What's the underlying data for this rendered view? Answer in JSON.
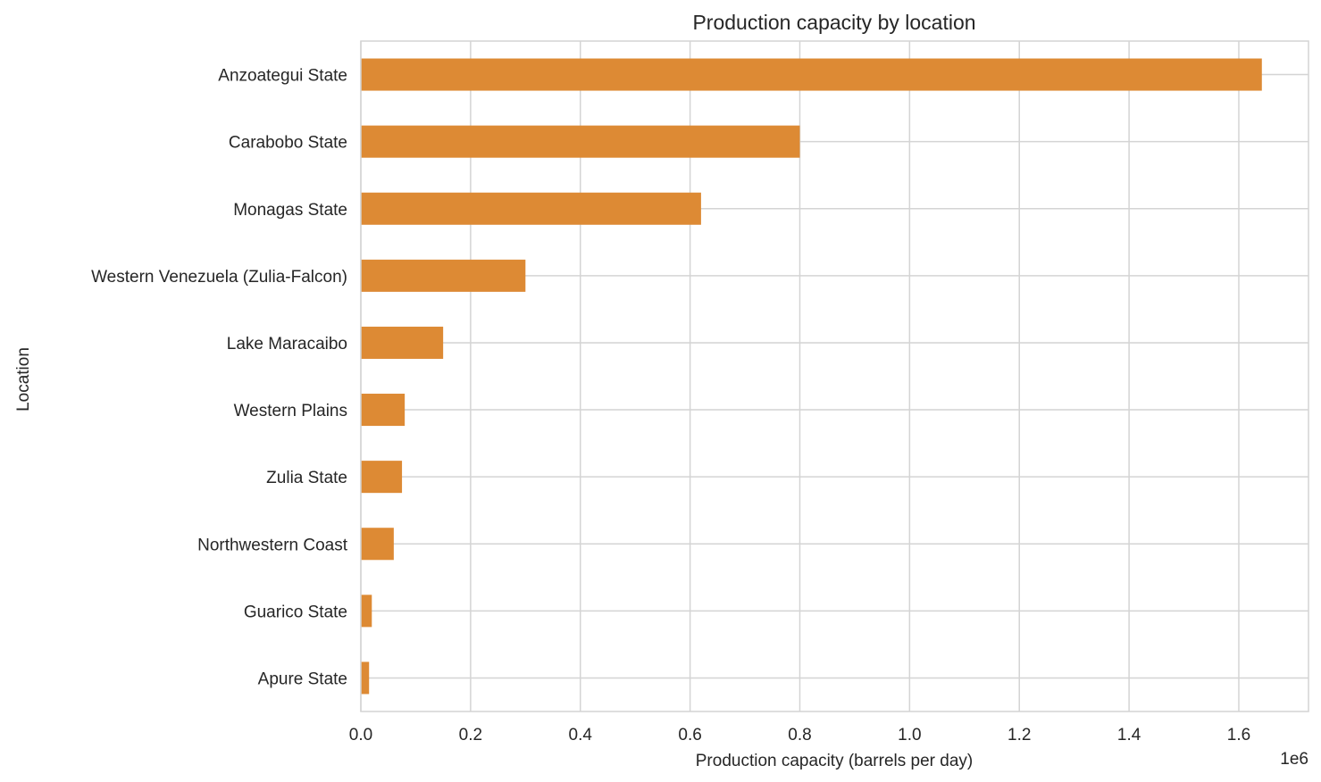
{
  "chart_data": {
    "type": "bar",
    "orientation": "horizontal",
    "title": "Production capacity by location",
    "xlabel": "Production capacity (barrels per day)",
    "ylabel": "Location",
    "x_offset_label": "1e6",
    "xlim": [
      0,
      1727000
    ],
    "x_ticks": [
      0,
      200000,
      400000,
      600000,
      800000,
      1000000,
      1200000,
      1400000,
      1600000
    ],
    "x_tick_labels": [
      "0.0",
      "0.2",
      "0.4",
      "0.6",
      "0.8",
      "1.0",
      "1.2",
      "1.4",
      "1.6"
    ],
    "categories": [
      "Anzoategui State",
      "Carabobo State",
      "Monagas State",
      "Western Venezuela (Zulia-Falcon)",
      "Lake Maracaibo",
      "Western Plains",
      "Zulia State",
      "Northwestern Coast",
      "Guarico State",
      "Apure State"
    ],
    "values": [
      1642000,
      800000,
      620000,
      300000,
      150000,
      80000,
      75000,
      60000,
      20000,
      15000
    ],
    "grid": true,
    "bar_color": "#dd8a34",
    "grid_color": "#d4d4d4"
  }
}
